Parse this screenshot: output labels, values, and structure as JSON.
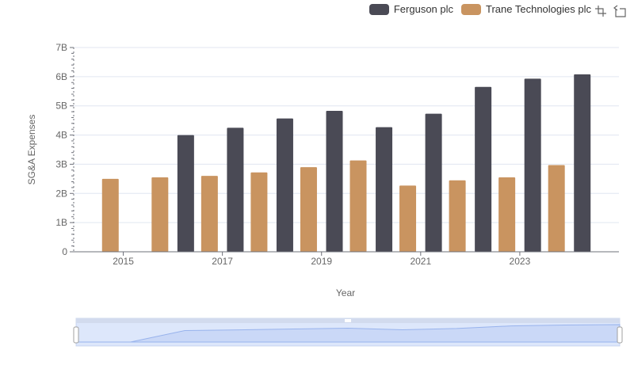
{
  "legend": {
    "items": [
      {
        "label": "Ferguson plc",
        "color": "#4a4a55"
      },
      {
        "label": "Trane Technologies plc",
        "color": "#c99460"
      }
    ]
  },
  "toolbox": {
    "icons": [
      "zoom-icon",
      "restore-icon"
    ]
  },
  "chart_data": {
    "type": "bar",
    "x": [
      2014,
      2015,
      2016,
      2017,
      2018,
      2019,
      2020,
      2021,
      2022,
      2023,
      2024
    ],
    "x_tick_labels": [
      "2015",
      "2017",
      "2019",
      "2021",
      "2023"
    ],
    "y_tick_labels": [
      "0",
      "1B",
      "2B",
      "3B",
      "4B",
      "5B",
      "6B",
      "7B"
    ],
    "series": [
      {
        "name": "Ferguson plc",
        "color": "#4a4a55",
        "values": [
          null,
          null,
          4.0,
          4.25,
          4.57,
          4.83,
          4.27,
          4.73,
          5.65,
          5.93,
          6.08
        ]
      },
      {
        "name": "Trane Technologies plc",
        "color": "#c99460",
        "values": [
          2.5,
          2.55,
          2.6,
          2.72,
          2.9,
          3.13,
          2.27,
          2.45,
          2.55,
          2.97,
          null
        ]
      }
    ],
    "xlabel": "Year",
    "ylabel": "SG&A Expenses",
    "ylim": [
      0,
      7
    ],
    "y_unit": "billions",
    "grid": true,
    "legend_position": "top-right",
    "data_zoom_slider": true
  }
}
